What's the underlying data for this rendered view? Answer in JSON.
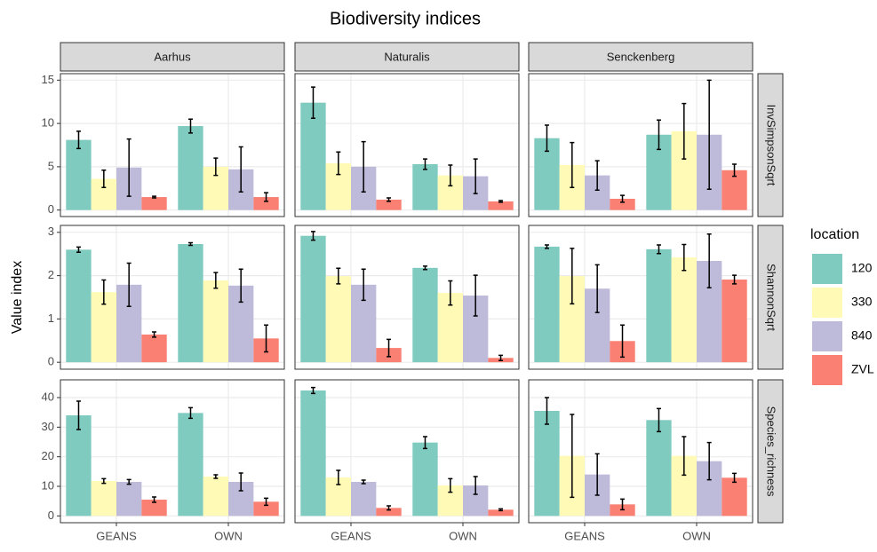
{
  "chart_data": {
    "type": "bar",
    "title": "Biodiversity indices",
    "y_label": "Value index",
    "legend_title": "location",
    "columns": [
      "Aarhus",
      "Naturalis",
      "Senckenberg"
    ],
    "categories": [
      "GEANS",
      "OWN"
    ],
    "series": [
      {
        "name": "120",
        "color": "#80cbc0"
      },
      {
        "name": "330",
        "color": "#fffbb6"
      },
      {
        "name": "840",
        "color": "#bebada"
      },
      {
        "name": "ZVL",
        "color": "#f98072"
      }
    ],
    "grid": true,
    "rows": [
      {
        "label": "InvSimpsonSqrt",
        "ylim": [
          -0.75,
          15.75
        ],
        "yticks": [
          0,
          5,
          10,
          15
        ],
        "panels": [
          {
            "values": [
              [
                8.1,
                9.7
              ],
              [
                3.6,
                5.0
              ],
              [
                4.9,
                4.7
              ],
              [
                1.5,
                1.5
              ]
            ],
            "errors": [
              [
                1.0,
                0.8
              ],
              [
                1.0,
                1.0
              ],
              [
                3.3,
                2.6
              ],
              [
                0.1,
                0.5
              ]
            ]
          },
          {
            "values": [
              [
                12.4,
                5.3
              ],
              [
                5.4,
                4.0
              ],
              [
                5.0,
                3.9
              ],
              [
                1.2,
                1.0
              ]
            ],
            "errors": [
              [
                1.8,
                0.6
              ],
              [
                1.3,
                1.2
              ],
              [
                2.9,
                2.0
              ],
              [
                0.2,
                0.1
              ]
            ]
          },
          {
            "values": [
              [
                8.3,
                8.7
              ],
              [
                5.2,
                9.1
              ],
              [
                4.0,
                8.7
              ],
              [
                1.3,
                4.6
              ]
            ],
            "errors": [
              [
                1.5,
                1.7
              ],
              [
                2.6,
                3.2
              ],
              [
                1.7,
                6.3
              ],
              [
                0.4,
                0.7
              ]
            ]
          }
        ]
      },
      {
        "label": "ShannonSqrt",
        "ylim": [
          -0.16,
          3.16
        ],
        "yticks": [
          0,
          1,
          2,
          3
        ],
        "panels": [
          {
            "values": [
              [
                2.6,
                2.73
              ],
              [
                1.62,
                1.89
              ],
              [
                1.79,
                1.77
              ],
              [
                0.64,
                0.55
              ]
            ],
            "errors": [
              [
                0.06,
                0.03
              ],
              [
                0.28,
                0.18
              ],
              [
                0.5,
                0.38
              ],
              [
                0.06,
                0.31
              ]
            ]
          },
          {
            "values": [
              [
                2.92,
                2.18
              ],
              [
                1.99,
                1.6
              ],
              [
                1.79,
                1.54
              ],
              [
                0.33,
                0.1
              ]
            ],
            "errors": [
              [
                0.1,
                0.04
              ],
              [
                0.18,
                0.28
              ],
              [
                0.36,
                0.47
              ],
              [
                0.2,
                0.06
              ]
            ]
          },
          {
            "values": [
              [
                2.67,
                2.61
              ],
              [
                1.99,
                2.42
              ],
              [
                1.7,
                2.34
              ],
              [
                0.49,
                1.91
              ]
            ],
            "errors": [
              [
                0.04,
                0.1
              ],
              [
                0.64,
                0.3
              ],
              [
                0.55,
                0.62
              ],
              [
                0.37,
                0.1
              ]
            ]
          }
        ]
      },
      {
        "label": "Species_richness",
        "ylim": [
          -2.3,
          46
        ],
        "yticks": [
          0,
          10,
          20,
          30,
          40
        ],
        "panels": [
          {
            "values": [
              [
                34,
                34.8
              ],
              [
                11.8,
                13.3
              ],
              [
                11.5,
                11.5
              ],
              [
                5.5,
                4.8
              ]
            ],
            "errors": [
              [
                4.8,
                1.8
              ],
              [
                0.8,
                0.6
              ],
              [
                0.8,
                3
              ],
              [
                0.9,
                1.2
              ]
            ]
          },
          {
            "values": [
              [
                42.4,
                24.8
              ],
              [
                13,
                10.3
              ],
              [
                11.5,
                10.3
              ],
              [
                2.7,
                2.1
              ]
            ],
            "errors": [
              [
                1,
                2
              ],
              [
                2.4,
                2.3
              ],
              [
                0.6,
                3
              ],
              [
                0.7,
                0.3
              ]
            ]
          },
          {
            "values": [
              [
                35.5,
                32.4
              ],
              [
                20.3,
                20.3
              ],
              [
                14,
                18.5
              ],
              [
                3.9,
                12.9
              ]
            ],
            "errors": [
              [
                4.5,
                3.9
              ],
              [
                14,
                6.5
              ],
              [
                7,
                6.3
              ],
              [
                1.8,
                1.5
              ]
            ]
          }
        ]
      }
    ]
  }
}
